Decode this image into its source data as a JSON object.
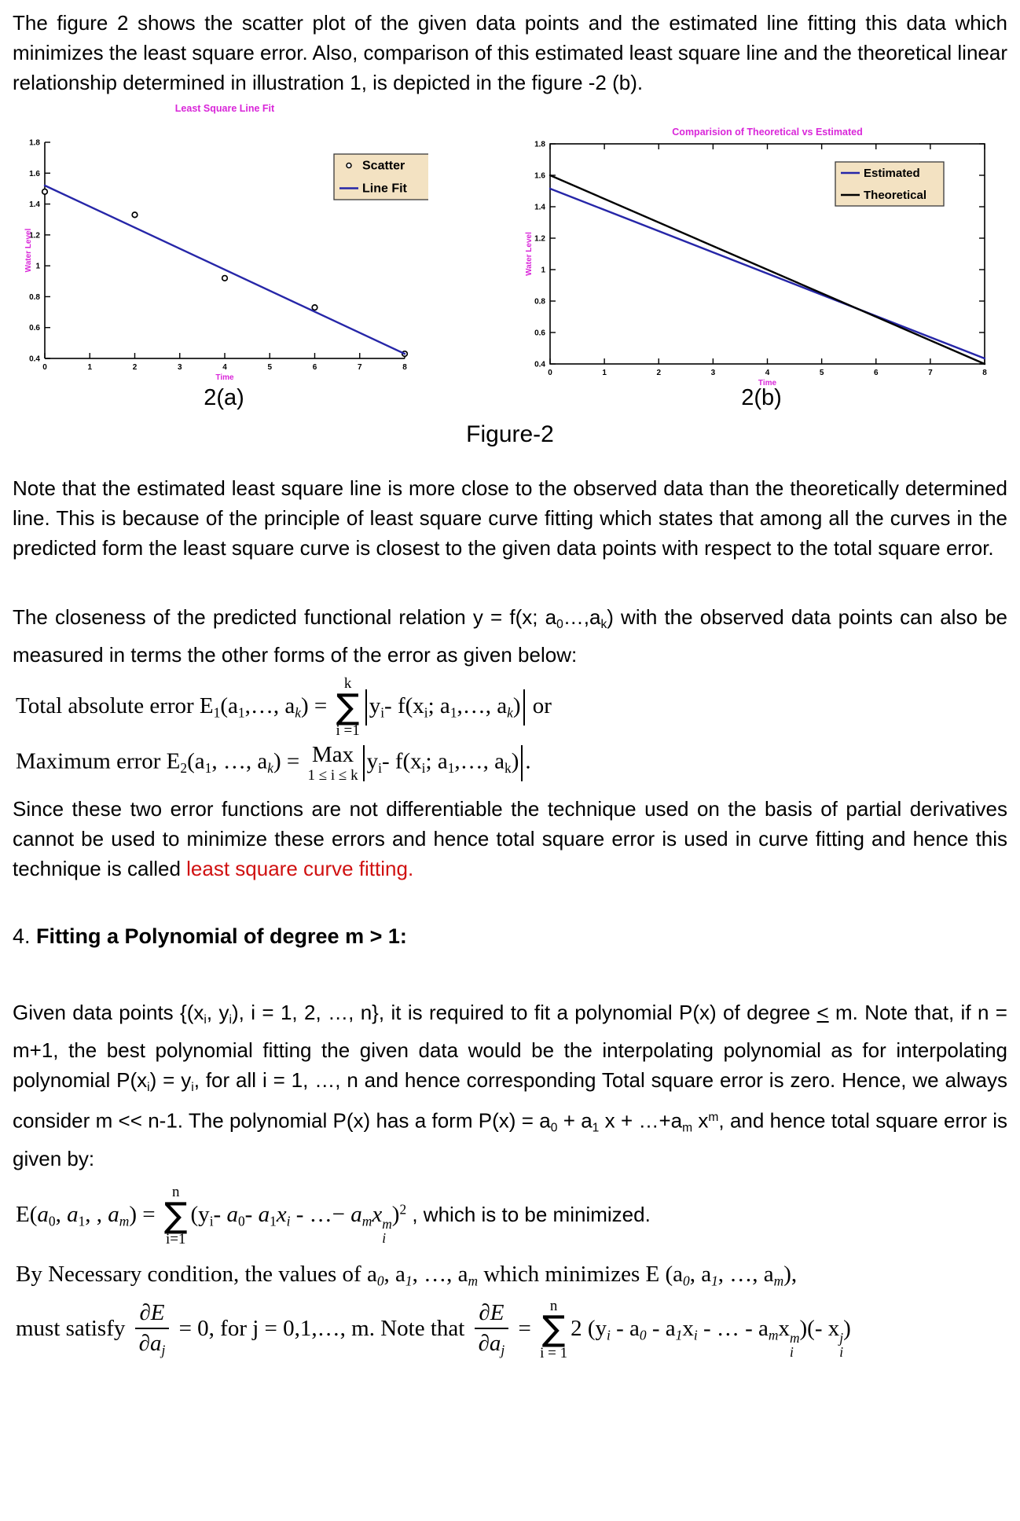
{
  "colors": {
    "magenta": "#d926d9",
    "line_blue": "#2626a8",
    "line_black": "#000000",
    "red": "#d01111",
    "legend_bg": "#f3e2c2",
    "legend_border": "#3a3a3a"
  },
  "paragraphs": {
    "intro": "The figure 2 shows the scatter plot of the given data points and the estimated line fitting this data which minimizes the least square error. Also, comparison of this estimated least square line and the theoretical linear relationship determined in illustration 1, is depicted in the figure -2 (b).",
    "note": "Note that the estimated least square line is more close to the observed data than the theoretically determined line. This is because of the principle of least square curve fitting which states that among all the curves in the predicted form the least square curve is closest to the given data points with respect to the total square error.",
    "closeness_runs": [
      {
        "t": "The closeness of the predicted functional relation y = f(x; a"
      },
      {
        "t": "0",
        "s": "sub"
      },
      {
        "t": "…,",
        "s": ""
      },
      {
        "t": "a"
      },
      {
        "t": "k",
        "s": "sub"
      },
      {
        "t": ") with the observed data points can also be measured in terms the other forms of the error as given below:"
      }
    ],
    "since_runs": [
      {
        "t": "Since these two error functions are not differentiable the technique used on the basis of partial derivatives cannot be used to minimize these errors and hence total square error is used in curve fitting and hence this technique is called "
      },
      {
        "t": "least square curve fitting.",
        "s": "red"
      }
    ],
    "given_runs": [
      {
        "t": "Given data points {(x"
      },
      {
        "t": "i",
        "s": "sub"
      },
      {
        "t": ", y"
      },
      {
        "t": "i",
        "s": "sub"
      },
      {
        "t": "), i = 1, 2, …, n}, it is required to fit a polynomial P(x) of degree "
      },
      {
        "t": "<",
        "s": "u"
      },
      {
        "t": " m. Note that, if n = m+1, the best polynomial fitting the given data would be the interpolating polynomial as for interpolating polynomial P(x"
      },
      {
        "t": "i",
        "s": "sub"
      },
      {
        "t": ") = y"
      },
      {
        "t": "i",
        "s": "sub"
      },
      {
        "t": ", for all i = 1, …, n and hence corresponding Total square error is zero. Hence, we always consider m << n-1. The polynomial P(x) has a form P(x) = a"
      },
      {
        "t": "0",
        "s": "sub"
      },
      {
        "t": " + a"
      },
      {
        "t": "1",
        "s": "sub"
      },
      {
        "t": " x + …+a"
      },
      {
        "t": "m",
        "s": "sub"
      },
      {
        "t": " x"
      },
      {
        "t": "m",
        "s": "sup"
      },
      {
        "t": ", and hence total square error is given by:"
      }
    ]
  },
  "heading": {
    "runs": [
      {
        "t": "4. "
      },
      {
        "t": "Fitting a Polynomial of degree m > 1:",
        "s": "b"
      }
    ]
  },
  "figure": {
    "caption_a": "2(a)",
    "caption_b": "2(b)",
    "caption_main": "Figure-2"
  },
  "chart_data": [
    {
      "type": "scatter",
      "title": "Least Square Line Fit",
      "xlabel": "Time",
      "ylabel": "Water Level",
      "xlim": [
        0,
        8
      ],
      "ylim": [
        0.4,
        1.8
      ],
      "xticks": [
        "0",
        "1",
        "2",
        "3",
        "4",
        "5",
        "6",
        "7",
        "8"
      ],
      "yticks": [
        "0.4",
        "0.6",
        "0.8",
        "1",
        "1.2",
        "1.4",
        "1.6",
        "1.8"
      ],
      "grid": false,
      "box": false,
      "legend_position": "upper right",
      "series": [
        {
          "name": "Scatter",
          "kind": "scatter",
          "x": [
            0,
            2,
            4,
            6,
            8
          ],
          "y": [
            1.48,
            1.33,
            0.92,
            0.73,
            0.43
          ],
          "color": "#000000"
        },
        {
          "name": "Line Fit",
          "kind": "line",
          "x": [
            0,
            8
          ],
          "y": [
            1.52,
            0.43
          ],
          "color": "#2626a8"
        }
      ]
    },
    {
      "type": "line",
      "title": "Comparision of Theoretical vs Estimated",
      "xlabel": "Time",
      "ylabel": "Water Level",
      "xlim": [
        0,
        8
      ],
      "ylim": [
        0.4,
        1.8
      ],
      "xticks": [
        "0",
        "1",
        "2",
        "3",
        "4",
        "5",
        "6",
        "7",
        "8"
      ],
      "yticks": [
        "0.4",
        "0.6",
        "0.8",
        "1",
        "1.2",
        "1.4",
        "1.6",
        "1.8"
      ],
      "grid": false,
      "box": true,
      "legend_position": "upper right",
      "series": [
        {
          "name": "Estimated",
          "kind": "line",
          "x": [
            0,
            8
          ],
          "y": [
            1.515,
            0.435
          ],
          "color": "#2626a8"
        },
        {
          "name": "Theoretical",
          "kind": "line",
          "x": [
            0,
            8
          ],
          "y": [
            1.6,
            0.4
          ],
          "color": "#000000"
        }
      ]
    }
  ],
  "formulas": {
    "total_abs": [
      {
        "t": "Total absolute error E"
      },
      {
        "t": "1",
        "s": "sub"
      },
      {
        "t": "(a"
      },
      {
        "t": "1",
        "s": "sub"
      },
      {
        "t": ",…, a"
      },
      {
        "t": "k",
        "s": "subi"
      },
      {
        "t": ") = "
      },
      {
        "s": "sum",
        "top": "k",
        "bot": "i =1"
      },
      {
        "s": "bigbar"
      },
      {
        "t": "y"
      },
      {
        "t": "i",
        "s": "sub"
      },
      {
        "t": "- f(x"
      },
      {
        "t": "i",
        "s": "sub"
      },
      {
        "t": "; a"
      },
      {
        "t": "1",
        "s": "sub"
      },
      {
        "t": ",…, a"
      },
      {
        "t": "k",
        "s": "subi"
      },
      {
        "t": ")"
      },
      {
        "s": "bigbar"
      },
      {
        "t": " or"
      }
    ],
    "max_err": [
      {
        "t": "Maximum error E"
      },
      {
        "t": "2",
        "s": "sub"
      },
      {
        "t": "(a"
      },
      {
        "t": "1",
        "s": "sub"
      },
      {
        "t": ", …, a"
      },
      {
        "t": "k",
        "s": "subi"
      },
      {
        "t": ") = "
      },
      {
        "s": "stack",
        "t": "Max",
        "bot": "1 ≤ i ≤ k"
      },
      {
        "s": "bigbar"
      },
      {
        "t": "y"
      },
      {
        "t": "i",
        "s": "sub"
      },
      {
        "t": "- f(x"
      },
      {
        "t": "i",
        "s": "sub"
      },
      {
        "t": "; a"
      },
      {
        "t": "1",
        "s": "sub"
      },
      {
        "t": ",…, a"
      },
      {
        "t": "k",
        "s": "sub"
      },
      {
        "t": ")"
      },
      {
        "s": "bigbar"
      },
      {
        "t": "."
      }
    ],
    "total_sq": [
      {
        "t": "E("
      },
      {
        "t": "a",
        "s": "i"
      },
      {
        "t": "0",
        "s": "sub"
      },
      {
        "t": ", "
      },
      {
        "t": "a",
        "s": "i"
      },
      {
        "t": "1",
        "s": "sub"
      },
      {
        "t": ", , "
      },
      {
        "t": "a",
        "s": "i"
      },
      {
        "t": "m",
        "s": "subi"
      },
      {
        "t": ") = "
      },
      {
        "s": "sum",
        "top": "n",
        "bot": "i=1"
      },
      {
        "t": "(y"
      },
      {
        "t": "i",
        "s": "sub"
      },
      {
        "t": "- "
      },
      {
        "t": "a",
        "s": "i"
      },
      {
        "t": "0",
        "s": "sub"
      },
      {
        "t": "- "
      },
      {
        "t": "a",
        "s": "i"
      },
      {
        "t": "1",
        "s": "sub"
      },
      {
        "t": "x",
        "s": "i"
      },
      {
        "t": "i",
        "s": "subi"
      },
      {
        "t": " - …− "
      },
      {
        "t": "a",
        "s": "i"
      },
      {
        "t": "m",
        "s": "subi"
      },
      {
        "t": "x",
        "s": "i"
      },
      {
        "s": "supsub",
        "sup": "m",
        "sub": "i"
      },
      {
        "t": ")"
      },
      {
        "t": "2",
        "s": "sup"
      },
      {
        "t": " , which is to be minimized.",
        "s": "sans"
      }
    ],
    "necessary": [
      {
        "t": "By Necessary condition, the values of a"
      },
      {
        "t": "0",
        "s": "subi"
      },
      {
        "t": ", a"
      },
      {
        "t": "1",
        "s": "subi"
      },
      {
        "t": ", …, a"
      },
      {
        "t": "m",
        "s": "subi"
      },
      {
        "t": " which minimizes E (a"
      },
      {
        "t": "0",
        "s": "subi"
      },
      {
        "t": ", a"
      },
      {
        "t": "1",
        "s": "subi"
      },
      {
        "t": ", …, a"
      },
      {
        "t": "m",
        "s": "subi"
      },
      {
        "t": "),"
      }
    ],
    "partial": [
      {
        "t": "must satisfy "
      },
      {
        "s": "frac",
        "num": [
          {
            "t": "∂E"
          }
        ],
        "den": [
          {
            "t": "∂a"
          },
          {
            "t": "j",
            "s": "subi"
          }
        ]
      },
      {
        "t": " = 0, for j = 0,1,…, m.  Note that "
      },
      {
        "s": "frac",
        "num": [
          {
            "t": "∂E"
          }
        ],
        "den": [
          {
            "t": "∂a"
          },
          {
            "t": "j",
            "s": "subi"
          }
        ]
      },
      {
        "t": " = "
      },
      {
        "s": "sum",
        "top": "n",
        "bot": "i = 1"
      },
      {
        "t": "2 (y"
      },
      {
        "t": "i",
        "s": "subi"
      },
      {
        "t": " - a"
      },
      {
        "t": "0",
        "s": "subi"
      },
      {
        "t": " - a"
      },
      {
        "t": "1",
        "s": "subi"
      },
      {
        "t": "x"
      },
      {
        "t": "i",
        "s": "subi"
      },
      {
        "t": " -  … - a"
      },
      {
        "t": "m",
        "s": "subi"
      },
      {
        "t": "x"
      },
      {
        "s": "supsub",
        "sup": "m",
        "sub": "i"
      },
      {
        "t": ")(- x"
      },
      {
        "s": "supsub",
        "sup": "j",
        "sub": "i"
      },
      {
        "t": ")"
      }
    ]
  }
}
